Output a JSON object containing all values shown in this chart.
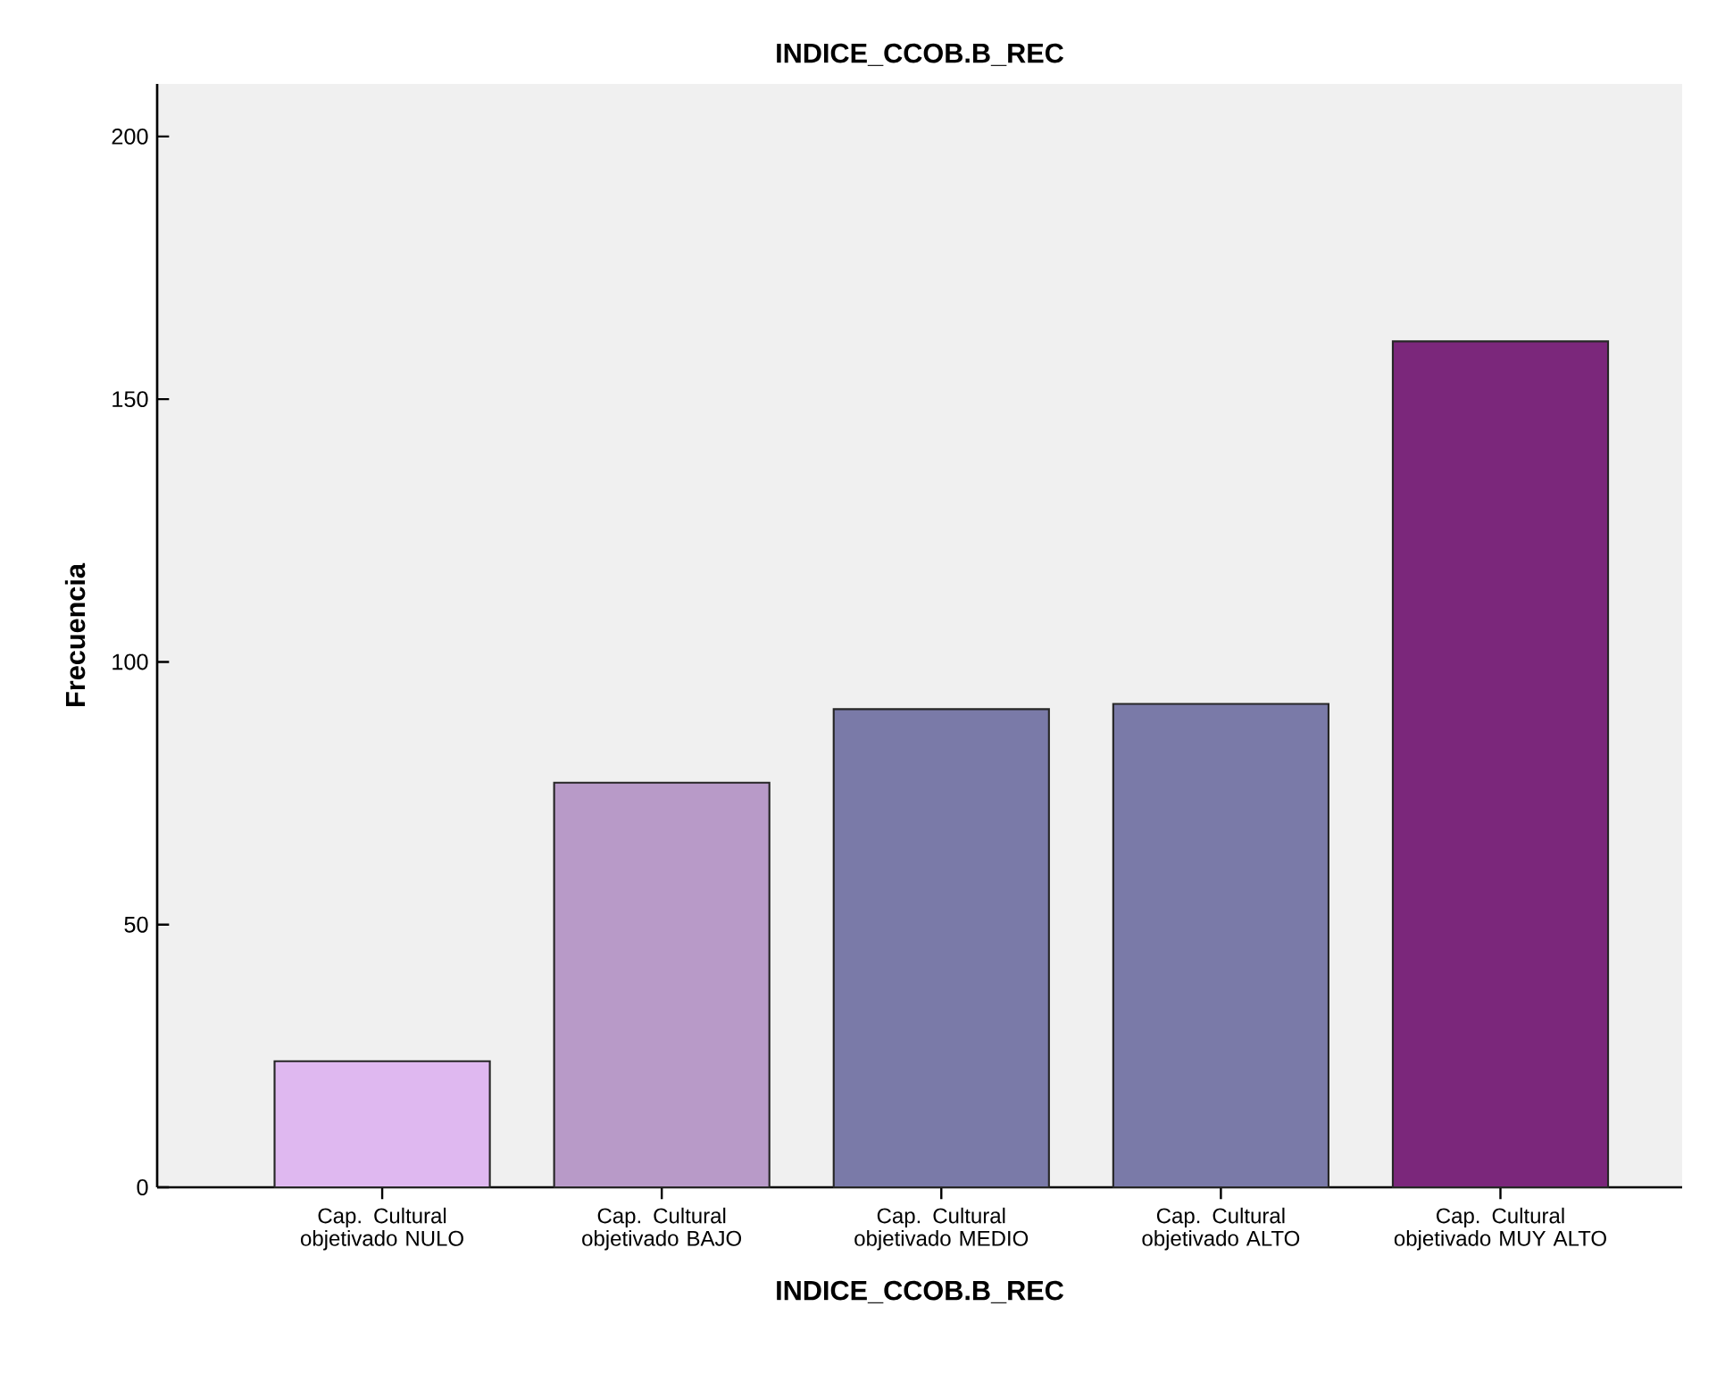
{
  "chart_data": {
    "type": "bar",
    "title": "INDICE_CCOB.B_REC",
    "xlabel": "INDICE_CCOB.B_REC",
    "ylabel": "Frecuencia",
    "categories": [
      "Cap. Cultural objetivado NULO",
      "Cap. Cultural objetivado BAJO",
      "Cap. Cultural objetivado MEDIO",
      "Cap. Cultural objetivado ALTO",
      "Cap. Cultural objetivado MUY ALTO"
    ],
    "values": [
      24,
      77,
      91,
      92,
      161
    ],
    "colors": [
      "#dfb8f0",
      "#b89ac8",
      "#7a7aa8",
      "#7a7aa8",
      "#7b277b"
    ],
    "ylim": [
      0,
      210
    ],
    "yticks": [
      0,
      50,
      100,
      150,
      200
    ]
  }
}
